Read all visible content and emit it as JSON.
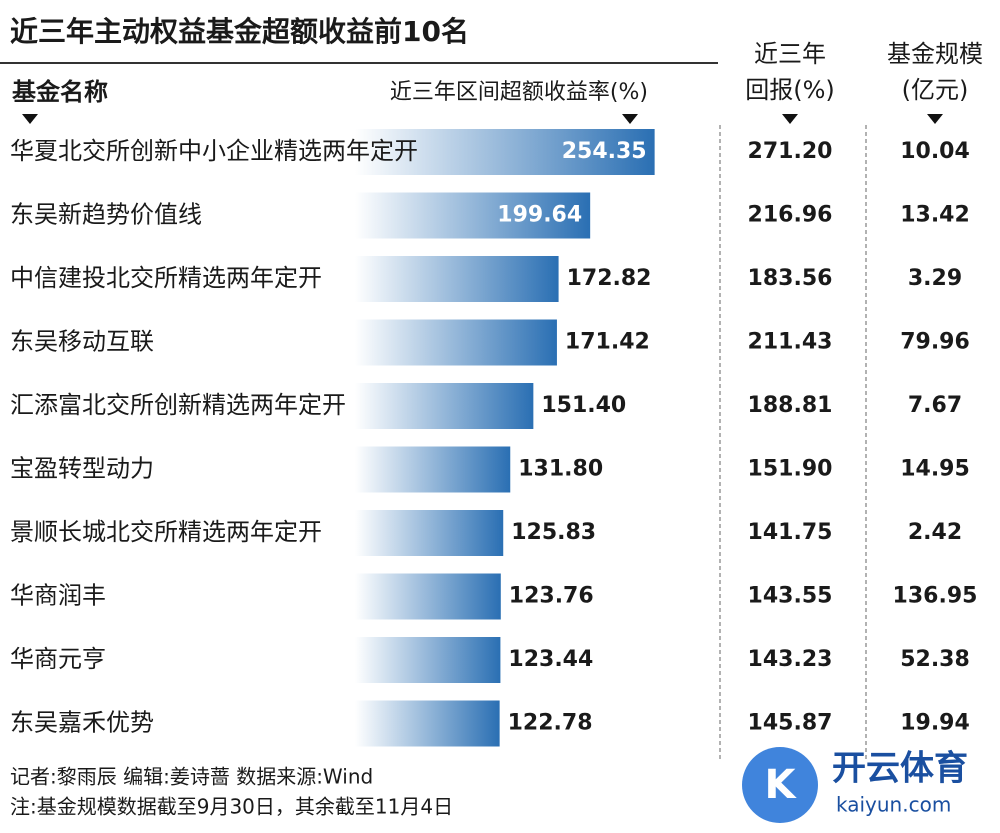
{
  "chart_data": {
    "type": "bar",
    "title": "近三年主动权益基金超额收益前10名",
    "category_header": "基金名称",
    "value_header": "近三年区间超额收益率(%)",
    "categories": [
      "华夏北交所创新中小企业精选两年定开",
      "东吴新趋势价值线",
      "中信建投北交所精选两年定开",
      "东吴移动互联",
      "汇添富北交所创新精选两年定开",
      "宝盈转型动力",
      "景顺长城北交所精选两年定开",
      "华商润丰",
      "华商元亨",
      "东吴嘉禾优势"
    ],
    "values": [
      254.35,
      199.64,
      172.82,
      171.42,
      151.4,
      131.8,
      125.83,
      123.76,
      123.44,
      122.78
    ],
    "value_labels": [
      "254.35",
      "199.64",
      "172.82",
      "171.42",
      "151.40",
      "131.80",
      "125.83",
      "123.76",
      "123.44",
      "122.78"
    ],
    "color": "#2a6fb3",
    "columns": [
      {
        "header": [
          "近三年",
          "回报(%)"
        ],
        "values": [
          271.2,
          216.96,
          183.56,
          211.43,
          188.81,
          151.9,
          141.75,
          143.55,
          143.23,
          145.87
        ],
        "value_labels": [
          "271.20",
          "216.96",
          "183.56",
          "211.43",
          "188.81",
          "151.90",
          "141.75",
          "143.55",
          "143.23",
          "145.87"
        ]
      },
      {
        "header": [
          "基金规模",
          "(亿元)"
        ],
        "values": [
          10.04,
          13.42,
          3.29,
          79.96,
          7.67,
          14.95,
          2.42,
          136.95,
          52.38,
          19.94
        ],
        "value_labels": [
          "10.04",
          "13.42",
          "3.29",
          "79.96",
          "7.67",
          "14.95",
          "2.42",
          "136.95",
          "52.38",
          "19.94"
        ]
      }
    ]
  },
  "footer": {
    "credits": "记者:黎雨辰  编辑:姜诗蔷  数据来源:Wind",
    "note": "注:基金规模数据截至9月30日，其余截至11月4日"
  },
  "watermark": {
    "name": "开云体育",
    "site": "kaiyun.com"
  }
}
